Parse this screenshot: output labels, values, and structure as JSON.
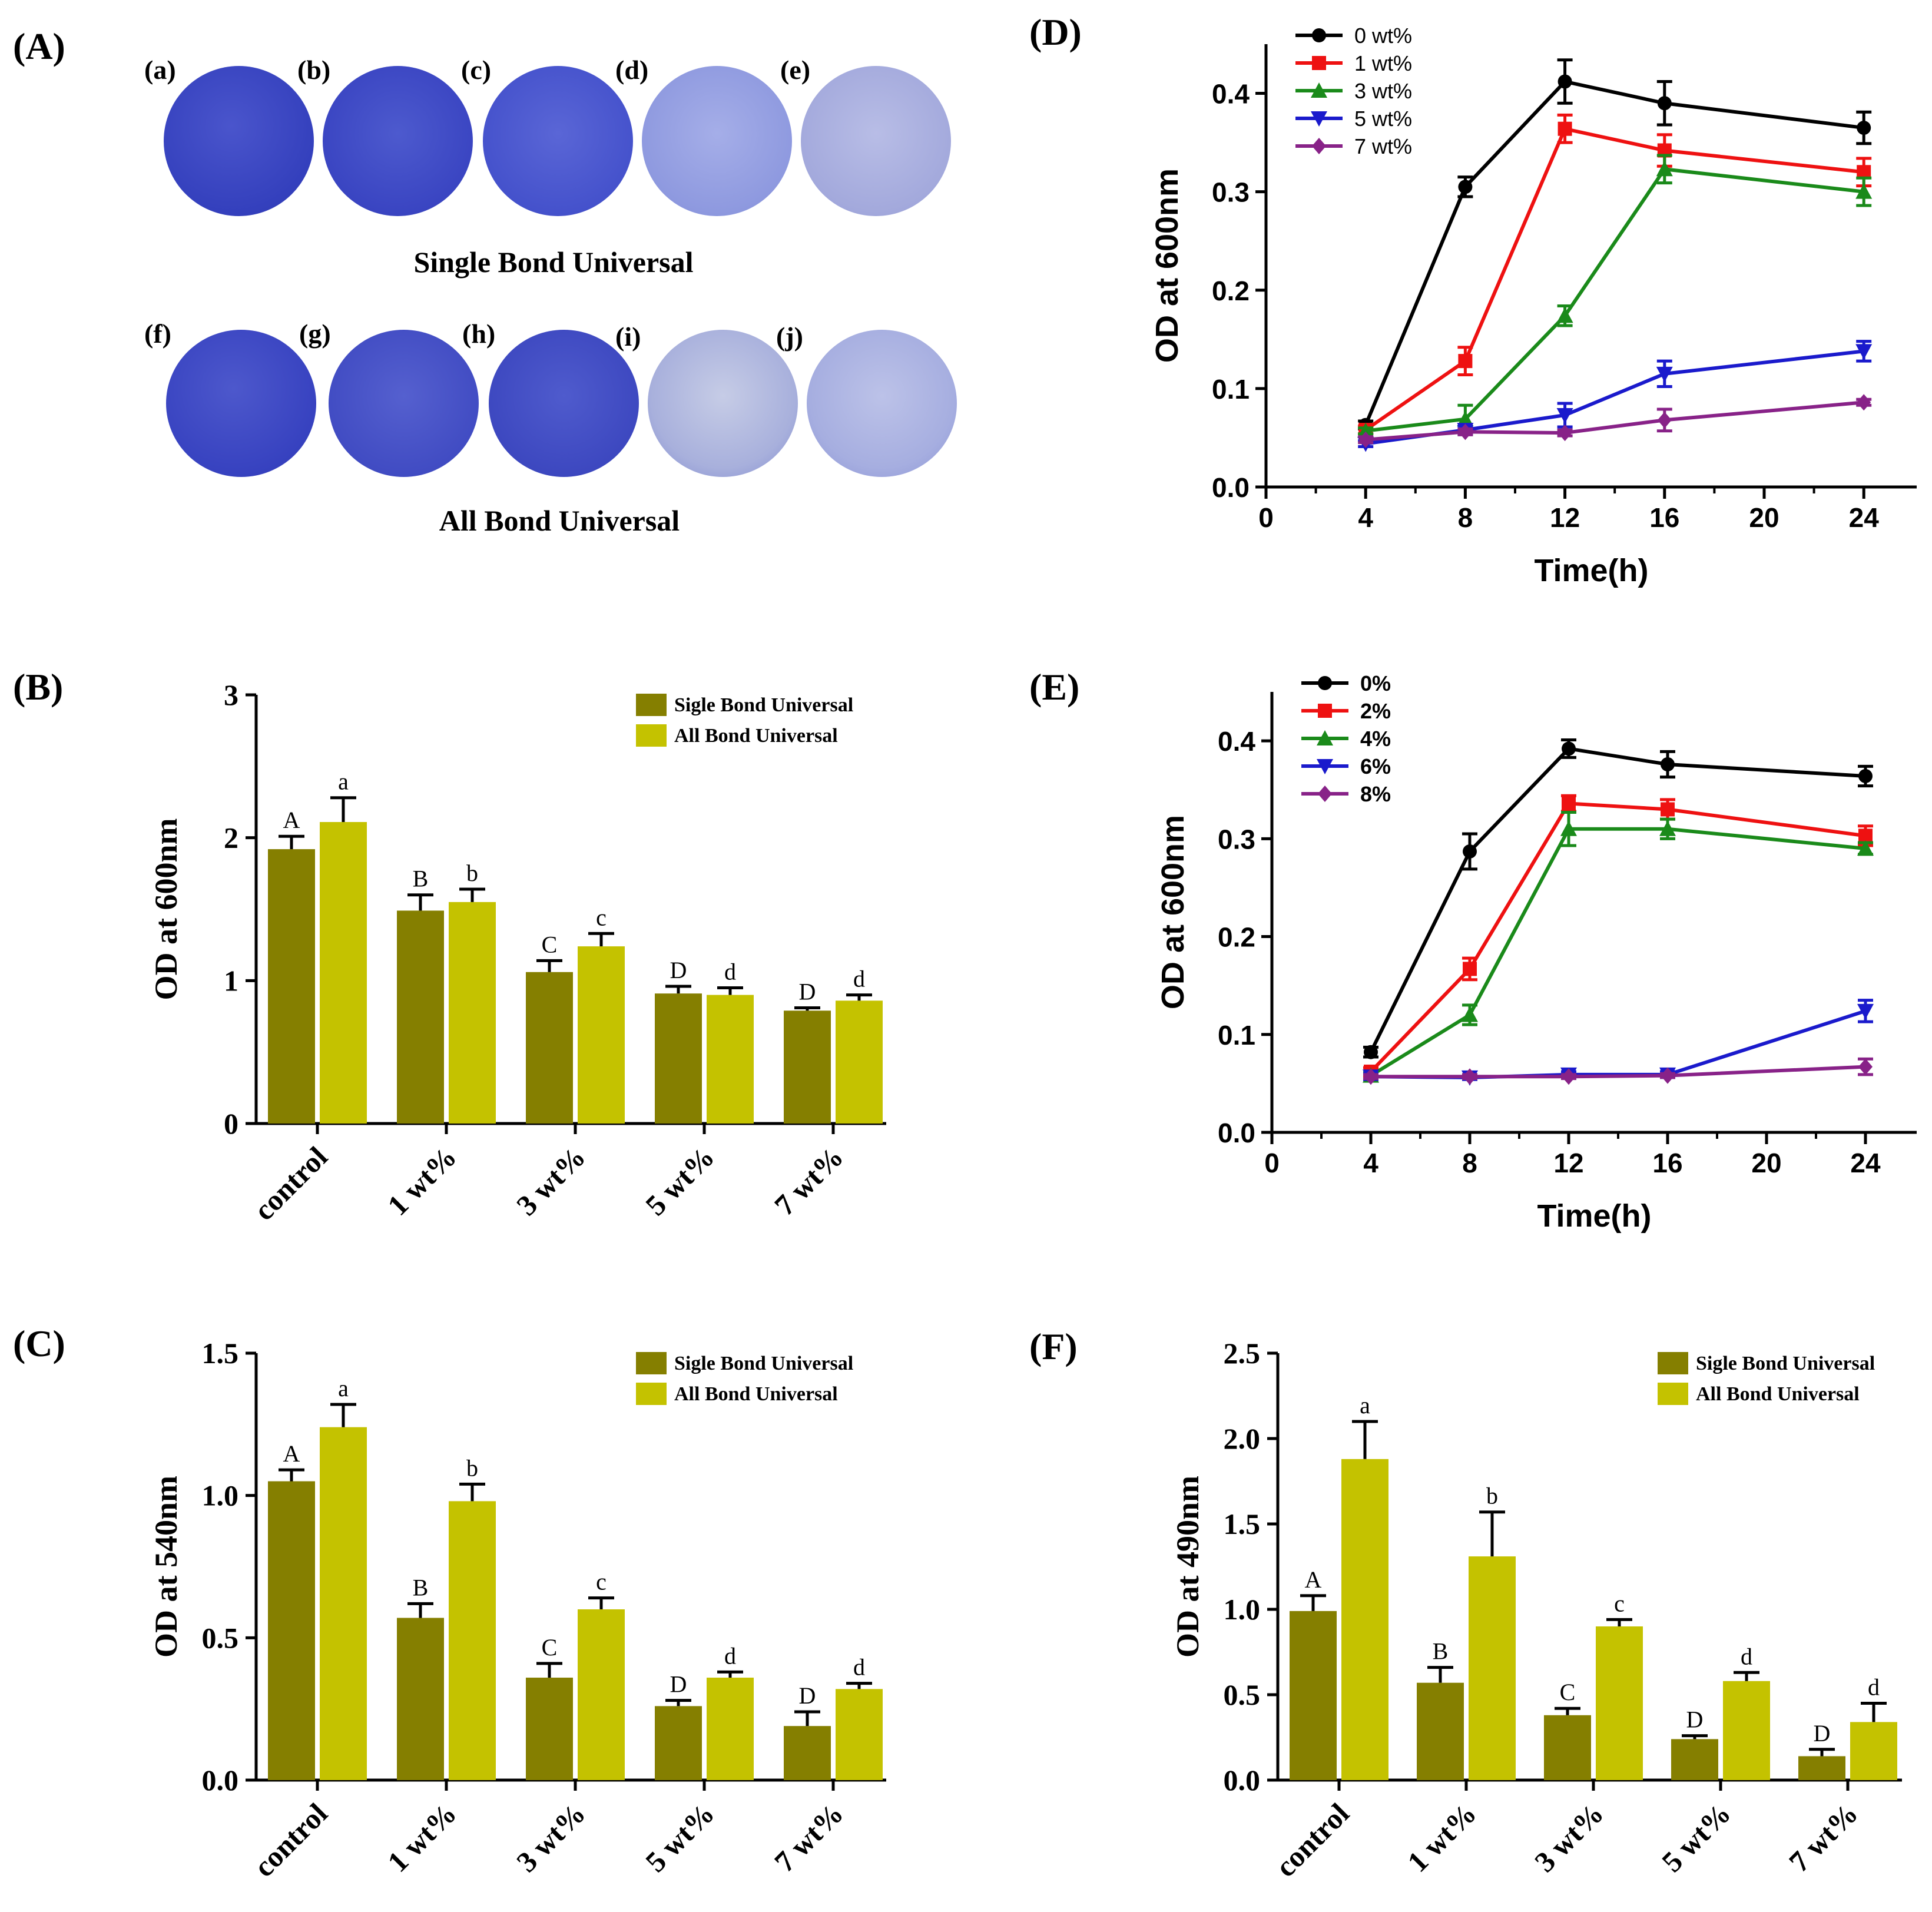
{
  "panels": {
    "A": "(A)",
    "B": "(B)",
    "C": "(C)",
    "D": "(D)",
    "E": "(E)",
    "F": "(F)"
  },
  "plates": {
    "row1_title": "Single Bond Universal",
    "row2_title": "All Bond Universal",
    "row1_labels": [
      "(a)",
      "(b)",
      "(c)",
      "(d)",
      "(e)"
    ],
    "row2_labels": [
      "(f)",
      "(g)",
      "(h)",
      "(i)",
      "(j)"
    ],
    "colors": [
      "#3a45c4",
      "#3d49c8",
      "#4654cf",
      "#8f9ae0",
      "#a6acde"
    ]
  },
  "chart_data": [
    {
      "id": "B",
      "type": "bar",
      "ylabel": "OD at 600nm",
      "ylim": [
        0,
        3
      ],
      "yticks": [
        "0",
        "1",
        "2",
        "3"
      ],
      "categories": [
        "control",
        "1 wt%",
        "3 wt%",
        "5 wt%",
        "7 wt%"
      ],
      "series": [
        {
          "name": "Sigle Bond Universal",
          "color": "#857f00",
          "values": [
            1.92,
            1.49,
            1.06,
            0.91,
            0.79
          ],
          "errors": [
            0.09,
            0.11,
            0.08,
            0.05,
            0.02
          ],
          "letters": [
            "A",
            "B",
            "C",
            "D",
            "D"
          ]
        },
        {
          "name": "All Bond Universal",
          "color": "#c4c200",
          "values": [
            2.11,
            1.55,
            1.24,
            0.9,
            0.86
          ],
          "errors": [
            0.17,
            0.09,
            0.09,
            0.05,
            0.04
          ],
          "letters": [
            "a",
            "b",
            "c",
            "d",
            "d"
          ]
        }
      ]
    },
    {
      "id": "C",
      "type": "bar",
      "ylabel": "OD at 540nm",
      "ylim": [
        0,
        1.5
      ],
      "yticks": [
        "0.0",
        "0.5",
        "1.0",
        "1.5"
      ],
      "categories": [
        "control",
        "1 wt%",
        "3 wt%",
        "5 wt%",
        "7 wt%"
      ],
      "series": [
        {
          "name": "Sigle Bond Universal",
          "color": "#857f00",
          "values": [
            1.05,
            0.57,
            0.36,
            0.26,
            0.19
          ],
          "errors": [
            0.04,
            0.05,
            0.05,
            0.02,
            0.05
          ],
          "letters": [
            "A",
            "B",
            "C",
            "D",
            "D"
          ]
        },
        {
          "name": "All Bond Universal",
          "color": "#c4c200",
          "values": [
            1.24,
            0.98,
            0.6,
            0.36,
            0.32
          ],
          "errors": [
            0.08,
            0.06,
            0.04,
            0.02,
            0.02
          ],
          "letters": [
            "a",
            "b",
            "c",
            "d",
            "d"
          ]
        }
      ]
    },
    {
      "id": "F",
      "type": "bar",
      "ylabel": "OD at 490nm",
      "ylim": [
        0,
        2.5
      ],
      "yticks": [
        "0.0",
        "0.5",
        "1.0",
        "1.5",
        "2.0",
        "2.5"
      ],
      "categories": [
        "control",
        "1 wt%",
        "3 wt%",
        "5 wt%",
        "7 wt%"
      ],
      "series": [
        {
          "name": "Sigle Bond Universal",
          "color": "#857f00",
          "values": [
            0.99,
            0.57,
            0.38,
            0.24,
            0.14
          ],
          "errors": [
            0.09,
            0.09,
            0.04,
            0.02,
            0.04
          ],
          "letters": [
            "A",
            "B",
            "C",
            "D",
            "D"
          ]
        },
        {
          "name": "All Bond Universal",
          "color": "#c4c200",
          "values": [
            1.88,
            1.31,
            0.9,
            0.58,
            0.34
          ],
          "errors": [
            0.22,
            0.26,
            0.04,
            0.05,
            0.11
          ],
          "letters": [
            "a",
            "b",
            "c",
            "d",
            "d"
          ]
        }
      ]
    },
    {
      "id": "D",
      "type": "line",
      "xlabel": "Time(h)",
      "ylabel": "OD at 600nm",
      "xlim": [
        0,
        26
      ],
      "ylim": [
        0,
        0.45
      ],
      "xticks": [
        0,
        4,
        8,
        12,
        16,
        20,
        24
      ],
      "xtick_labels": [
        "0",
        "4",
        "8",
        "12",
        "16",
        "20",
        "24"
      ],
      "yticks": [
        0,
        0.1,
        0.2,
        0.3,
        0.4
      ],
      "ytick_labels": [
        "0.0",
        "0.1",
        "0.2",
        "0.3",
        "0.4"
      ],
      "x": [
        4,
        8,
        12,
        16,
        24
      ],
      "series": [
        {
          "name": "0 wt%",
          "color": "#000000",
          "marker": "circle",
          "values": [
            0.063,
            0.305,
            0.412,
            0.39,
            0.365
          ],
          "errors": [
            0.004,
            0.01,
            0.022,
            0.022,
            0.016
          ]
        },
        {
          "name": "1 wt%",
          "color": "#ee1111",
          "marker": "square",
          "values": [
            0.058,
            0.128,
            0.364,
            0.342,
            0.32
          ],
          "errors": [
            0.004,
            0.014,
            0.014,
            0.016,
            0.014
          ]
        },
        {
          "name": "3 wt%",
          "color": "#1a8a1a",
          "marker": "triangle-up",
          "values": [
            0.057,
            0.069,
            0.174,
            0.323,
            0.3
          ],
          "errors": [
            0.003,
            0.014,
            0.01,
            0.014,
            0.014
          ]
        },
        {
          "name": "5 wt%",
          "color": "#1a1acc",
          "marker": "triangle-down",
          "values": [
            0.044,
            0.058,
            0.073,
            0.115,
            0.138
          ],
          "errors": [
            0.003,
            0.004,
            0.012,
            0.013,
            0.01
          ]
        },
        {
          "name": "7 wt%",
          "color": "#882288",
          "marker": "diamond",
          "values": [
            0.048,
            0.056,
            0.055,
            0.068,
            0.086
          ],
          "errors": [
            0.003,
            0.003,
            0.003,
            0.011,
            0.003
          ]
        }
      ]
    },
    {
      "id": "E",
      "type": "line",
      "xlabel": "Time(h)",
      "ylabel": "OD at 600nm",
      "xlim": [
        0,
        26
      ],
      "ylim": [
        0,
        0.45
      ],
      "xticks": [
        0,
        4,
        8,
        12,
        16,
        20,
        24
      ],
      "xtick_labels": [
        "0",
        "4",
        "8",
        "12",
        "16",
        "20",
        "24"
      ],
      "yticks": [
        0,
        0.1,
        0.2,
        0.3,
        0.4
      ],
      "ytick_labels": [
        "0.0",
        "0.1",
        "0.2",
        "0.3",
        "0.4"
      ],
      "x": [
        4,
        8,
        12,
        16,
        24
      ],
      "series": [
        {
          "name": "0%",
          "color": "#000000",
          "marker": "circle",
          "values": [
            0.082,
            0.287,
            0.392,
            0.376,
            0.364
          ],
          "errors": [
            0.005,
            0.018,
            0.009,
            0.013,
            0.01
          ]
        },
        {
          "name": "2%",
          "color": "#ee1111",
          "marker": "square",
          "values": [
            0.062,
            0.167,
            0.336,
            0.33,
            0.303
          ],
          "errors": [
            0.004,
            0.011,
            0.008,
            0.01,
            0.01
          ]
        },
        {
          "name": "4%",
          "color": "#1a8a1a",
          "marker": "triangle-up",
          "values": [
            0.058,
            0.12,
            0.31,
            0.31,
            0.29
          ],
          "errors": [
            0.003,
            0.01,
            0.017,
            0.01,
            0.006
          ]
        },
        {
          "name": "6%",
          "color": "#1a1acc",
          "marker": "triangle-down",
          "values": [
            0.057,
            0.056,
            0.059,
            0.059,
            0.124
          ],
          "errors": [
            0.003,
            0.002,
            0.003,
            0.003,
            0.011
          ]
        },
        {
          "name": "8%",
          "color": "#882288",
          "marker": "diamond",
          "values": [
            0.057,
            0.057,
            0.057,
            0.058,
            0.067
          ],
          "errors": [
            0.002,
            0.002,
            0.002,
            0.002,
            0.008
          ]
        }
      ]
    }
  ]
}
